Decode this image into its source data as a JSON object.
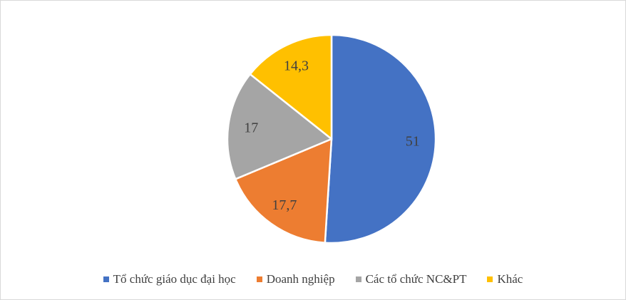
{
  "figure": {
    "background": "#ffffff",
    "border_color": "#d9d9d9"
  },
  "chart_data": {
    "type": "pie",
    "title": "",
    "start_angle_deg": 0,
    "direction": "clockwise",
    "legend_position": "bottom",
    "data_label_color": "#404040",
    "slice_separator_color": "#ffffff",
    "slices": [
      {
        "label": "Tổ chức giáo dục đại học",
        "value": 51,
        "display": "51",
        "color": "#4472C4"
      },
      {
        "label": "Doanh nghiệp",
        "value": 17.7,
        "display": "17,7",
        "color": "#ED7D31"
      },
      {
        "label": "Các tổ chức NC&PT",
        "value": 17,
        "display": "17",
        "color": "#A5A5A5"
      },
      {
        "label": "Khác",
        "value": 14.3,
        "display": "14,3",
        "color": "#FFC000"
      }
    ]
  }
}
